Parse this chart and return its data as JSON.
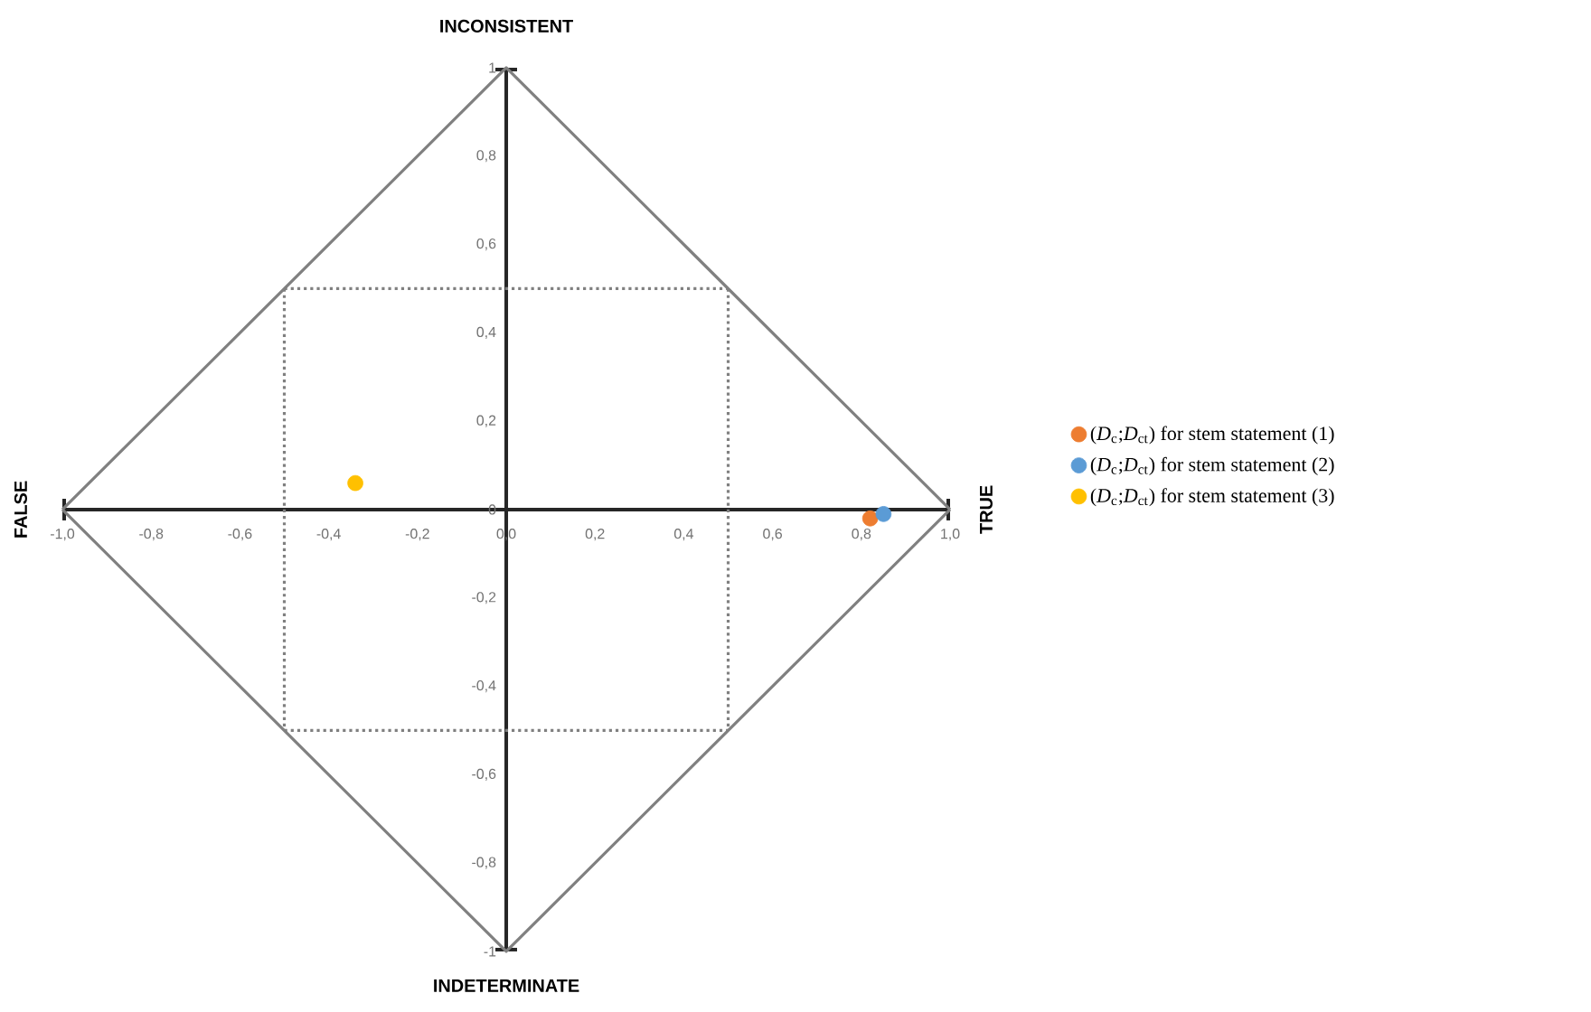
{
  "chart_data": {
    "type": "scatter",
    "series": [
      {
        "name": "(*D*$_{c}$;*D*$_{ct}$) for stem statement (1)",
        "color": "#ed7d31",
        "marker": "circle",
        "x": [
          0.82
        ],
        "values": [
          -0.02
        ]
      },
      {
        "name": "(*D*$_{c}$;*D*$_{ct}$) for stem statement (2)",
        "color": "#5b9bd5",
        "marker": "circle",
        "x": [
          0.85
        ],
        "values": [
          -0.01
        ]
      },
      {
        "name": "(*D*$_{c}$;*D*$_{ct}$) for stem statement (3)",
        "color": "#ffc000",
        "marker": "circle",
        "x": [
          -0.34
        ],
        "values": [
          0.06
        ]
      },
      {
        "type": "line",
        "color": "#808080",
        "marker": "none",
        "line_style": "solid",
        "x": [
          -1,
          0,
          1
        ],
        "values": [
          0,
          1,
          0
        ]
      },
      {
        "type": "line",
        "color": "#808080",
        "marker": "none",
        "line_style": "solid",
        "x": [
          -1,
          0,
          1
        ],
        "values": [
          0,
          -1,
          0
        ]
      },
      {
        "type": "line",
        "color": "#808080",
        "marker": "none",
        "line_style": "dotted",
        "x": [
          -0.5,
          0.5
        ],
        "values": [
          0.5,
          0.5
        ]
      },
      {
        "type": "line",
        "color": "#808080",
        "marker": "none",
        "line_style": "dotted",
        "x": [
          -0.5,
          0.5
        ],
        "values": [
          -0.5,
          -0.5
        ]
      },
      {
        "type": "line",
        "color": "#808080",
        "marker": "none",
        "line_style": "dotted",
        "x": [
          -0.5,
          -0.5
        ],
        "values": [
          0.5,
          -0.5
        ]
      },
      {
        "type": "line",
        "color": "#808080",
        "marker": "none",
        "line_style": "dotted",
        "x": [
          0.5,
          0.5
        ],
        "values": [
          0.5,
          -0.5
        ]
      }
    ],
    "xlim": [
      -1,
      1
    ],
    "ylim": [
      -1,
      1
    ],
    "xticks": [
      {
        "value": -1,
        "label": "-1,0"
      },
      {
        "value": -0.8,
        "label": "-0,8"
      },
      {
        "value": -0.6,
        "label": "-0,6"
      },
      {
        "value": -0.4,
        "label": "-0,4"
      },
      {
        "value": -0.2,
        "label": "-0,2"
      },
      {
        "value": 0,
        "label": "0,0"
      },
      {
        "value": 0.2,
        "label": "0,2"
      },
      {
        "value": 0.4,
        "label": "0,4"
      },
      {
        "value": 0.6,
        "label": "0,6"
      },
      {
        "value": 0.8,
        "label": "0,8"
      },
      {
        "value": 1,
        "label": "1,0"
      }
    ],
    "yticks": [
      -1,
      {
        "value": -0.8,
        "label": "-0,8"
      },
      {
        "value": -0.6,
        "label": "-0,6"
      },
      {
        "value": -0.4,
        "label": "-0,4"
      },
      {
        "value": -0.2,
        "label": "-0,2"
      },
      0,
      {
        "value": 0.2,
        "label": "0,2"
      },
      {
        "value": 0.4,
        "label": "0,4"
      },
      {
        "value": 0.6,
        "label": "0,6"
      },
      {
        "value": 0.8,
        "label": "0,8"
      },
      1
    ],
    "annotations": [
      {
        "text": "INCONSISTENT",
        "x": 0,
        "y": 1
      },
      {
        "text": "INDETERMINATE",
        "x": 0,
        "y": -1
      },
      {
        "text": "FALSE",
        "x": -1,
        "y": 0
      },
      {
        "text": "TRUE",
        "x": 1,
        "y": 0
      }
    ],
    "grid": false,
    "legend": "right"
  }
}
